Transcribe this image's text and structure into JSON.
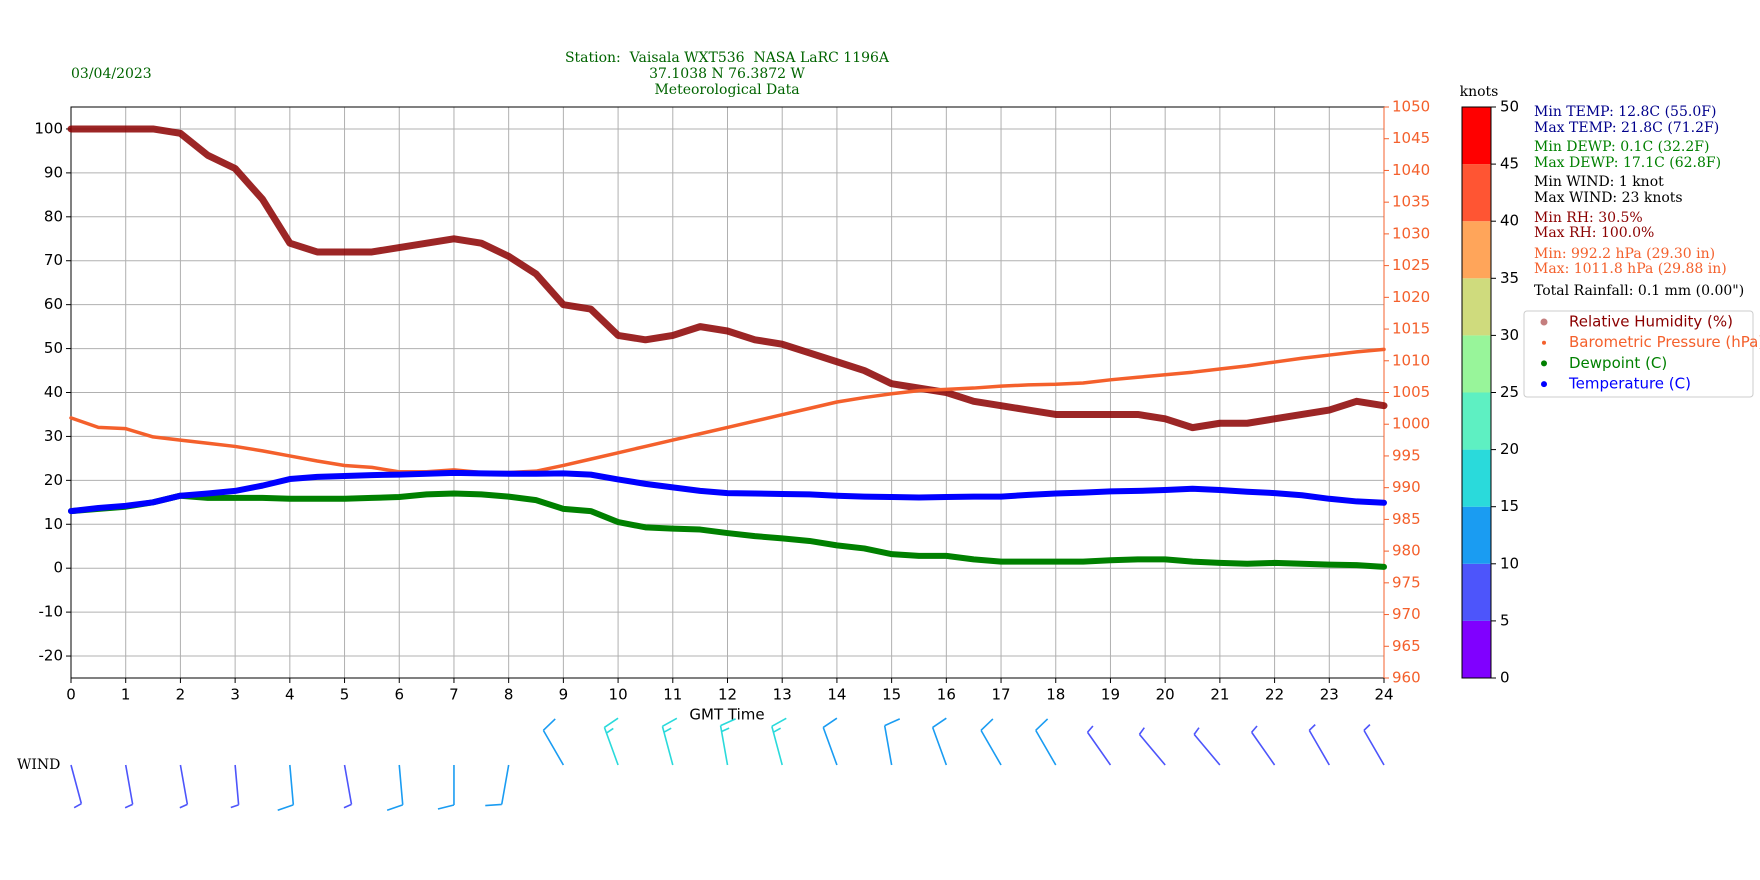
{
  "chart_data": {
    "type": "line",
    "title": [
      "Station:  Vaisala WXT536  NASA LaRC 1196A",
      "37.1038 N 76.3872 W",
      "Meteorological Data"
    ],
    "title_color": "#006400",
    "date": "03/04/2023",
    "xlabel": "GMT Time",
    "x": [
      0,
      0.5,
      1,
      1.5,
      2,
      2.5,
      3,
      3.5,
      4,
      4.5,
      5,
      5.5,
      6,
      6.5,
      7,
      7.5,
      8,
      8.5,
      9,
      9.5,
      10,
      10.5,
      11,
      11.5,
      12,
      12.5,
      13,
      13.5,
      14,
      14.5,
      15,
      15.5,
      16,
      16.5,
      17,
      17.5,
      18,
      18.5,
      19,
      19.5,
      20,
      20.5,
      21,
      21.5,
      22,
      22.5,
      23,
      23.5,
      24
    ],
    "xlim": [
      0,
      24
    ],
    "xticks": [
      0,
      1,
      2,
      3,
      4,
      5,
      6,
      7,
      8,
      9,
      10,
      11,
      12,
      13,
      14,
      15,
      16,
      17,
      18,
      19,
      20,
      21,
      22,
      23,
      24
    ],
    "ylim": [
      -25,
      105
    ],
    "yticks": [
      -20,
      -10,
      0,
      10,
      20,
      30,
      40,
      50,
      60,
      70,
      80,
      90,
      100
    ],
    "y2lim": [
      960,
      1050
    ],
    "y2ticks": [
      960,
      965,
      970,
      975,
      980,
      985,
      990,
      995,
      1000,
      1005,
      1010,
      1015,
      1020,
      1025,
      1030,
      1035,
      1040,
      1045,
      1050
    ],
    "y2_color": "#f4602c",
    "grid": true,
    "series": [
      {
        "name": "Relative Humidity (%)",
        "color": "#8b0000",
        "values": [
          100,
          100,
          100,
          100,
          99,
          94,
          91,
          84,
          74,
          72,
          72,
          72,
          73,
          74,
          75,
          74,
          71,
          67,
          60,
          59,
          53,
          52,
          53,
          55,
          54,
          52,
          51,
          49,
          47,
          45,
          42,
          41,
          40,
          38,
          37,
          36,
          35,
          35,
          35,
          35,
          34,
          32,
          33,
          33,
          34,
          35,
          36,
          38,
          37
        ]
      },
      {
        "name": "Barometric Pressure (hPa)",
        "color": "#f4602c",
        "axis": "y2",
        "values": [
          1001,
          999.5,
          999.3,
          998,
          997.5,
          997,
          996.5,
          995.8,
          995,
          994.2,
          993.5,
          993.2,
          992.5,
          992.5,
          992.8,
          992.4,
          992.4,
          992.6,
          993.5,
          994.5,
          995.5,
          996.5,
          997.5,
          998.5,
          999.5,
          1000.5,
          1001.5,
          1002.5,
          1003.5,
          1004.2,
          1004.8,
          1005.3,
          1005.5,
          1005.7,
          1006,
          1006.2,
          1006.3,
          1006.5,
          1007,
          1007.4,
          1007.8,
          1008.2,
          1008.7,
          1009.2,
          1009.8,
          1010.4,
          1010.9,
          1011.4,
          1011.8
        ]
      },
      {
        "name": "Dewpoint (C)",
        "color": "#008000",
        "values": [
          13,
          13.5,
          14,
          15,
          16.5,
          16,
          16,
          16,
          15.8,
          15.8,
          15.8,
          16,
          16.2,
          16.8,
          17,
          16.8,
          16.3,
          15.5,
          13.5,
          13,
          10.5,
          9.3,
          9,
          8.8,
          8,
          7.3,
          6.8,
          6.2,
          5.2,
          4.5,
          3.2,
          2.8,
          2.8,
          2,
          1.5,
          1.5,
          1.5,
          1.5,
          1.8,
          2,
          2,
          1.5,
          1.2,
          1,
          1.2,
          1,
          0.8,
          0.7,
          0.3
        ]
      },
      {
        "name": "Temperature (C)",
        "color": "#0000ff",
        "values": [
          13,
          13.7,
          14.2,
          15,
          16.5,
          17,
          17.6,
          18.8,
          20.3,
          20.8,
          21,
          21.2,
          21.3,
          21.5,
          21.7,
          21.6,
          21.5,
          21.5,
          21.6,
          21.3,
          20.2,
          19.2,
          18.4,
          17.6,
          17.1,
          17,
          16.9,
          16.8,
          16.5,
          16.3,
          16.2,
          16.1,
          16.2,
          16.3,
          16.3,
          16.7,
          17,
          17.2,
          17.5,
          17.6,
          17.8,
          18.1,
          17.8,
          17.4,
          17.1,
          16.6,
          15.8,
          15.2,
          14.9
        ]
      }
    ],
    "stats": [
      {
        "text": "Min TEMP: 12.8C (55.0F)",
        "color": "#00008b"
      },
      {
        "text": "Max TEMP: 21.8C (71.2F)",
        "color": "#00008b"
      },
      {
        "text": "Min DEWP: 0.1C (32.2F)",
        "color": "#008000"
      },
      {
        "text": "Max DEWP: 17.1C (62.8F)",
        "color": "#008000"
      },
      {
        "text": "Min WIND: 1 knot",
        "color": "#000000"
      },
      {
        "text": "Max WIND: 23 knots",
        "color": "#000000"
      },
      {
        "text": "Min RH: 30.5%",
        "color": "#8b0000"
      },
      {
        "text": "Max RH: 100.0%",
        "color": "#8b0000"
      },
      {
        "text": "Min: 992.2 hPa (29.30 in)",
        "color": "#f4602c"
      },
      {
        "text": "Max: 1011.8 hPa (29.88 in)",
        "color": "#f4602c"
      },
      {
        "text": "Total Rainfall: 0.1 mm (0.00\")",
        "color": "#000000"
      }
    ],
    "colorbar": {
      "label": "knots",
      "bounds": [
        0,
        5,
        10,
        15,
        20,
        25,
        30,
        35,
        40,
        45,
        50
      ],
      "colors": [
        "#8000ff",
        "#4d55fb",
        "#1a9cf2",
        "#2adadb",
        "#5ef0c2",
        "#98f59a",
        "#cfdb7d",
        "#ffa55a",
        "#ff5533",
        "#ff0000"
      ]
    },
    "wind": {
      "label": "WIND",
      "x": [
        0,
        1,
        2,
        3,
        4,
        5,
        6,
        7,
        8,
        9,
        10,
        11,
        12,
        13,
        14,
        15,
        16,
        17,
        18,
        19,
        20,
        21,
        22,
        23,
        24
      ],
      "speed": [
        6,
        8,
        9,
        8,
        10,
        9,
        11,
        12,
        10,
        14,
        15,
        17,
        16,
        15,
        14,
        13,
        12,
        12,
        10,
        9,
        8,
        8,
        7,
        6,
        6
      ],
      "direction": [
        165,
        170,
        170,
        175,
        175,
        170,
        175,
        180,
        190,
        330,
        340,
        345,
        350,
        345,
        340,
        350,
        340,
        330,
        330,
        325,
        320,
        320,
        325,
        330,
        330
      ]
    }
  }
}
